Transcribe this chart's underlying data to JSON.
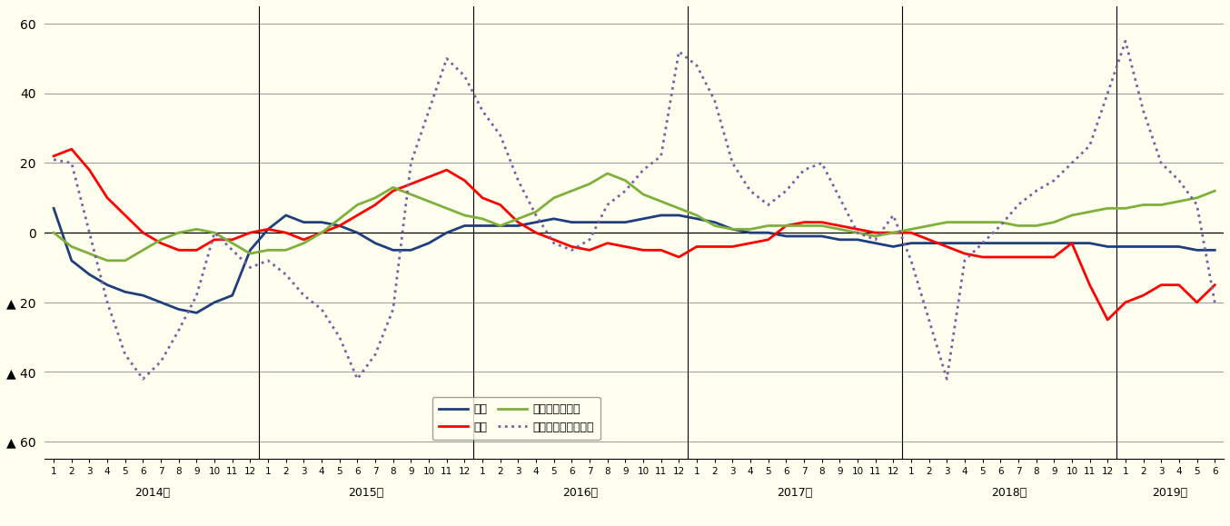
{
  "background_color": "#FFFFF0",
  "ylim": [
    -65,
    65
  ],
  "yticks": [
    -60,
    -40,
    -20,
    0,
    20,
    40,
    60
  ],
  "ytick_labels": [
    "▲ 60",
    "▲ 40",
    "▲ 20",
    "0",
    "20",
    "40",
    "60"
  ],
  "year_names": [
    "2014年",
    "2015年",
    "2016年",
    "2017年",
    "2018年",
    "2019年"
  ],
  "jika": [
    7,
    -8,
    -12,
    -15,
    -17,
    -18,
    -20,
    -22,
    -23,
    -20,
    -18,
    -5,
    1,
    5,
    3,
    3,
    2,
    0,
    -3,
    -5,
    -5,
    -3,
    0,
    2,
    2,
    2,
    2,
    3,
    4,
    3,
    3,
    3,
    3,
    4,
    5,
    5,
    4,
    3,
    1,
    0,
    0,
    -1,
    -1,
    -1,
    -2,
    -2,
    -3,
    -4,
    -3,
    -3,
    -3,
    -3,
    -3,
    -3,
    -3,
    -3,
    -3,
    -3,
    -3,
    -4,
    -4,
    -4,
    -4,
    -4,
    -5,
    -5
  ],
  "chintai": [
    22,
    24,
    18,
    10,
    5,
    0,
    -3,
    -5,
    -5,
    -2,
    -2,
    0,
    1,
    0,
    -2,
    0,
    2,
    5,
    8,
    12,
    14,
    16,
    18,
    15,
    10,
    8,
    3,
    0,
    -2,
    -4,
    -5,
    -3,
    -4,
    -5,
    -5,
    -7,
    -4,
    -4,
    -4,
    -3,
    -2,
    2,
    3,
    3,
    2,
    1,
    0,
    0,
    0,
    -2,
    -4,
    -6,
    -7,
    -7,
    -7,
    -7,
    -7,
    -3,
    -15,
    -25,
    -20,
    -18,
    -15,
    -15,
    -20,
    -15
  ],
  "bunjo_iko": [
    0,
    -4,
    -6,
    -8,
    -8,
    -5,
    -2,
    0,
    1,
    0,
    -3,
    -6,
    -5,
    -5,
    -3,
    0,
    4,
    8,
    10,
    13,
    11,
    9,
    7,
    5,
    4,
    2,
    4,
    6,
    10,
    12,
    14,
    17,
    15,
    11,
    9,
    7,
    5,
    2,
    1,
    1,
    2,
    2,
    2,
    2,
    1,
    0,
    -1,
    0,
    1,
    2,
    3,
    3,
    3,
    3,
    2,
    2,
    3,
    5,
    6,
    7,
    7,
    8,
    8,
    9,
    10,
    12
  ],
  "bunjo_man": [
    21,
    20,
    0,
    -20,
    -35,
    -42,
    -37,
    -28,
    -18,
    0,
    -5,
    -10,
    -8,
    -12,
    -18,
    -22,
    -30,
    -42,
    -35,
    -22,
    20,
    35,
    50,
    45,
    35,
    28,
    15,
    5,
    -3,
    -5,
    -2,
    8,
    12,
    18,
    22,
    52,
    48,
    38,
    20,
    12,
    8,
    12,
    18,
    20,
    10,
    0,
    -2,
    5,
    -8,
    -25,
    -42,
    -8,
    -3,
    2,
    8,
    12,
    15,
    20,
    25,
    40,
    55,
    35,
    20,
    15,
    8,
    -20
  ]
}
